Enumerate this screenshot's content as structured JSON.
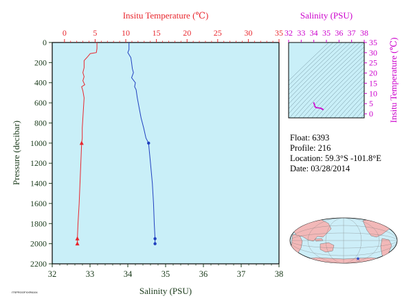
{
  "colors": {
    "plot_bg": "#c9eff8",
    "temperature": "#e8262d",
    "salinity": "#1f3fbf",
    "axis_dark": "#1a3a1a",
    "magenta": "#cc00cc",
    "land": "#f2b8b8",
    "ocean": "#cdeef8"
  },
  "chart_data": [
    {
      "type": "line",
      "x_top_label": "Insitu Temperature (℃)",
      "x_bottom_label": "Salinity (PSU)",
      "ylabel": "Pressure (decibar)",
      "x_top_ticks": [
        "0",
        "5",
        "10",
        "15",
        "20",
        "25",
        "30",
        "35"
      ],
      "x_bottom_ticks": [
        "32",
        "33",
        "34",
        "35",
        "36",
        "37",
        "38"
      ],
      "y_ticks": [
        "0",
        "200",
        "400",
        "600",
        "800",
        "1000",
        "1200",
        "1400",
        "1600",
        "1800",
        "2000",
        "2200"
      ],
      "temperature_range": [
        -2,
        35
      ],
      "salinity_range": [
        32,
        38
      ],
      "pressure_range": [
        0,
        2200
      ],
      "series": [
        {
          "name": "Insitu Temperature",
          "axis": "top",
          "profile": [
            [
              5.3,
              0
            ],
            [
              5.3,
              60
            ],
            [
              5.2,
              100
            ],
            [
              4.2,
              110
            ],
            [
              3.8,
              140
            ],
            [
              3.2,
              180
            ],
            [
              3.2,
              250
            ],
            [
              3.0,
              300
            ],
            [
              3.2,
              340
            ],
            [
              3.0,
              380
            ],
            [
              3.3,
              420
            ],
            [
              2.8,
              440
            ],
            [
              3.0,
              480
            ],
            [
              3.2,
              550
            ],
            [
              3.1,
              650
            ],
            [
              3.0,
              750
            ],
            [
              2.9,
              850
            ],
            [
              2.9,
              950
            ],
            [
              2.8,
              1000
            ],
            [
              2.6,
              1300
            ],
            [
              2.4,
              1600
            ],
            [
              2.2,
              1800
            ],
            [
              2.1,
              1950
            ],
            [
              2.1,
              2000
            ]
          ],
          "markers": [
            [
              2.8,
              1000
            ],
            [
              2.1,
              1950
            ],
            [
              2.1,
              2000
            ]
          ]
        },
        {
          "name": "Salinity",
          "axis": "bottom",
          "profile": [
            [
              34.03,
              0
            ],
            [
              34.03,
              70
            ],
            [
              34.0,
              100
            ],
            [
              34.08,
              150
            ],
            [
              34.1,
              200
            ],
            [
              34.12,
              260
            ],
            [
              34.15,
              300
            ],
            [
              34.1,
              350
            ],
            [
              34.2,
              400
            ],
            [
              34.18,
              440
            ],
            [
              34.22,
              470
            ],
            [
              34.25,
              550
            ],
            [
              34.3,
              650
            ],
            [
              34.35,
              750
            ],
            [
              34.42,
              850
            ],
            [
              34.48,
              950
            ],
            [
              34.55,
              1000
            ],
            [
              34.6,
              1200
            ],
            [
              34.65,
              1400
            ],
            [
              34.68,
              1600
            ],
            [
              34.7,
              1800
            ],
            [
              34.72,
              1950
            ],
            [
              34.72,
              2000
            ]
          ],
          "markers": [
            [
              34.55,
              1000
            ],
            [
              34.72,
              1950
            ],
            [
              34.72,
              2000
            ]
          ]
        }
      ]
    },
    {
      "type": "scatter",
      "xlabel": "Salinity (PSU)",
      "ylabel": "Insitu Temperature (℃)",
      "x_ticks": [
        "32",
        "33",
        "34",
        "35",
        "36",
        "37",
        "38"
      ],
      "y_ticks": [
        "0",
        "5",
        "10",
        "15",
        "20",
        "25",
        "30",
        "35"
      ],
      "xlim": [
        32,
        38
      ],
      "ylim": [
        -2,
        35
      ],
      "points": [
        [
          34.0,
          5.3
        ],
        [
          34.05,
          4.5
        ],
        [
          34.1,
          3.5
        ],
        [
          34.2,
          3.0
        ],
        [
          34.35,
          2.9
        ],
        [
          34.5,
          2.8
        ],
        [
          34.62,
          2.5
        ],
        [
          34.7,
          2.2
        ],
        [
          34.72,
          2.1
        ]
      ]
    }
  ],
  "float_info": {
    "float": "Float:  6393",
    "profile": "Profile:  216",
    "location": "Location:  59.3°S  -101.8°E",
    "date": "Date:  03/28/2014"
  },
  "footer_id": "ITSPROOFXXR6104"
}
